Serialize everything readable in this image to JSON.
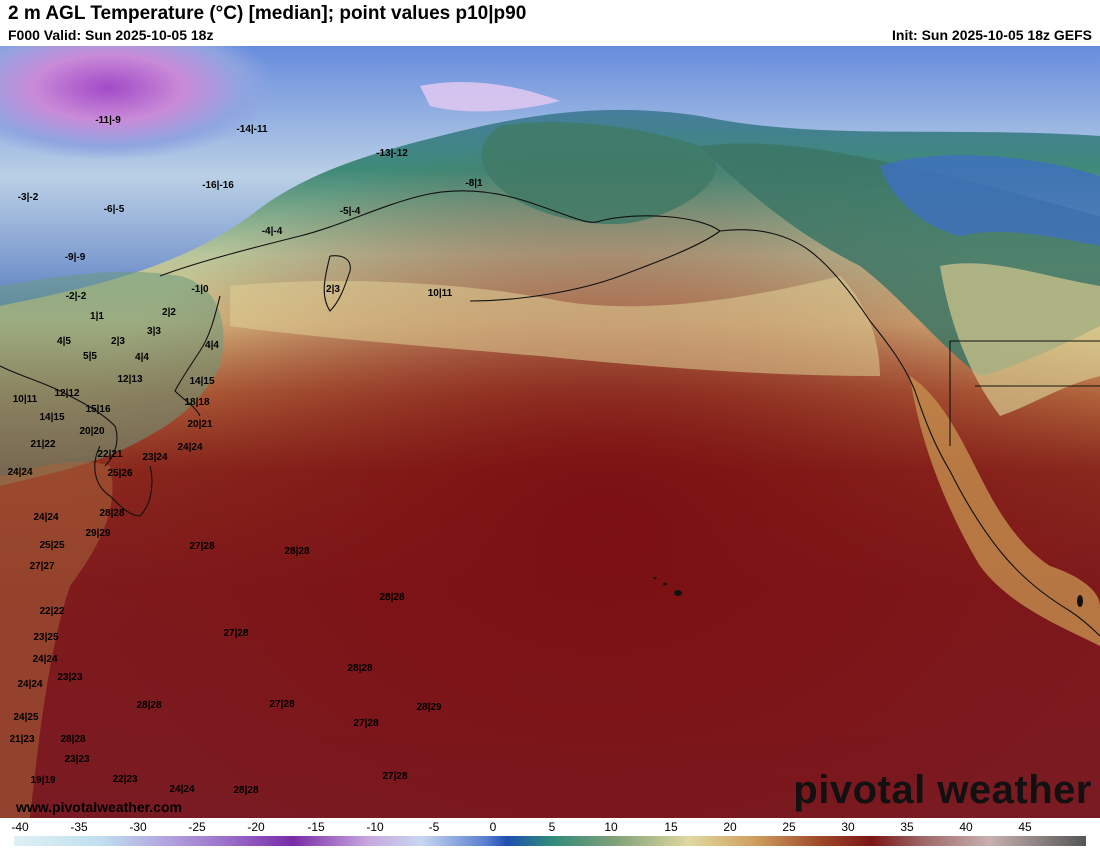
{
  "header": {
    "title": "2 m AGL Temperature (°C) [median]; point values p10|p90",
    "valid": "F000 Valid: Sun 2025-10-05 18z",
    "init": "Init: Sun 2025-10-05 18z GEFS"
  },
  "branding": {
    "logo_text": "pivotal weather",
    "watermark": "www.pivotalweather.com"
  },
  "colorbar": {
    "ticks": [
      "-40",
      "-35",
      "-30",
      "-25",
      "-20",
      "-15",
      "-10",
      "-5",
      "0",
      "5",
      "10",
      "15",
      "20",
      "25",
      "30",
      "35",
      "40",
      "45"
    ]
  },
  "point_values": [
    "-11|-9",
    "-14|-11",
    "-13|-12",
    "-16|-16",
    "-3|-2",
    "-6|-5",
    "-9|-9",
    "-4|-4",
    "-5|-4",
    "-8|1",
    "-2|-2",
    "-1|0",
    "1|1",
    "2|3",
    "2|2",
    "2|3",
    "3|3",
    "4|5",
    "5|5",
    "4|4",
    "4|4",
    "10|11",
    "10|11",
    "12|12",
    "12|13",
    "14|15",
    "15|16",
    "14|15",
    "18|18",
    "20|20",
    "21|22",
    "20|21",
    "22|21",
    "24|24",
    "23|24",
    "24|24",
    "25|26",
    "28|28",
    "24|24",
    "29|29",
    "27|28",
    "28|28",
    "25|25",
    "27|27",
    "28|28",
    "22|22",
    "27|28",
    "23|25",
    "24|24",
    "28|28",
    "24|24",
    "23|23",
    "28|28",
    "27|28",
    "28|29",
    "24|25",
    "27|28",
    "21|23",
    "28|28",
    "23|23",
    "22|23",
    "27|28",
    "19|19",
    "24|24",
    "28|28"
  ]
}
